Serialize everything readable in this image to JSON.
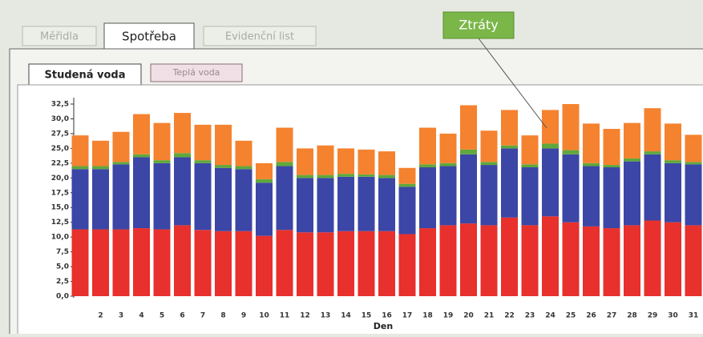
{
  "tabs": [
    "Měřidla",
    "Spotřeba",
    "Evidenční list"
  ],
  "subtabs": [
    "Studená voda",
    "Teplá voda"
  ],
  "callout": "Ztráty",
  "chart_data": {
    "type": "stacked-bar",
    "x_label": "Den",
    "categories": [
      null,
      "2",
      "3",
      "4",
      "5",
      "6",
      "7",
      "8",
      "9",
      "10",
      "11",
      "12",
      "13",
      "14",
      "15",
      "16",
      "17",
      "18",
      "19",
      "20",
      "21",
      "22",
      "23",
      "24",
      "25",
      "26",
      "27",
      "28",
      "29",
      "30",
      "31"
    ],
    "series": [
      {
        "color": "#e8302c",
        "values": [
          11.3,
          11.3,
          11.3,
          11.5,
          11.3,
          12.0,
          11.2,
          11.0,
          11.0,
          10.2,
          11.2,
          10.8,
          10.8,
          11.0,
          11.0,
          11.0,
          10.5,
          11.5,
          12.0,
          12.3,
          12.0,
          13.3,
          12.0,
          13.5,
          12.5,
          11.8,
          11.5,
          12.0,
          12.8,
          12.5,
          12.0
        ]
      },
      {
        "color": "#3b46a6",
        "values": [
          10.2,
          10.2,
          11.0,
          12.0,
          11.2,
          11.5,
          11.3,
          10.7,
          10.5,
          9.0,
          10.8,
          9.2,
          9.2,
          9.2,
          9.2,
          9.0,
          8.0,
          10.3,
          10.0,
          11.7,
          10.2,
          11.7,
          9.8,
          11.5,
          11.5,
          10.2,
          10.3,
          10.8,
          11.2,
          10.0,
          10.3
        ]
      },
      {
        "color": "#5fa83c",
        "values": [
          0.5,
          0.5,
          0.4,
          0.5,
          0.5,
          0.7,
          0.5,
          0.5,
          0.5,
          0.6,
          0.7,
          0.5,
          0.5,
          0.5,
          0.4,
          0.5,
          0.5,
          0.5,
          0.5,
          0.8,
          0.5,
          0.5,
          0.5,
          0.8,
          0.7,
          0.5,
          0.4,
          0.5,
          0.5,
          0.5,
          0.4
        ]
      },
      {
        "color": "#f5822f",
        "values": [
          5.2,
          4.3,
          5.1,
          6.8,
          6.3,
          6.8,
          6.0,
          6.8,
          4.3,
          2.7,
          5.8,
          4.5,
          5.0,
          4.3,
          4.2,
          4.0,
          2.7,
          6.2,
          5.0,
          7.5,
          5.3,
          6.0,
          4.9,
          5.7,
          7.8,
          6.7,
          6.1,
          6.0,
          7.3,
          6.2,
          4.6
        ]
      }
    ],
    "ylim": [
      0,
      32.5
    ],
    "yticks": [
      {
        "value": 0,
        "label": "0,0"
      },
      {
        "value": 2.5,
        "label": "2,5"
      },
      {
        "value": 5,
        "label": "5,0"
      },
      {
        "value": 7.5,
        "label": "7,5"
      },
      {
        "value": 10,
        "label": "10,0"
      },
      {
        "value": 12.5,
        "label": "12,5"
      },
      {
        "value": 15,
        "label": "15,0"
      },
      {
        "value": 17.5,
        "label": "17,5"
      },
      {
        "value": 20,
        "label": "20,0"
      },
      {
        "value": 22.5,
        "label": "22,5"
      },
      {
        "value": 25,
        "label": "25,0"
      },
      {
        "value": 27.5,
        "label": "27,5"
      },
      {
        "value": 30,
        "label": "30,0"
      },
      {
        "value": 32.5,
        "label": "32,5"
      }
    ]
  }
}
